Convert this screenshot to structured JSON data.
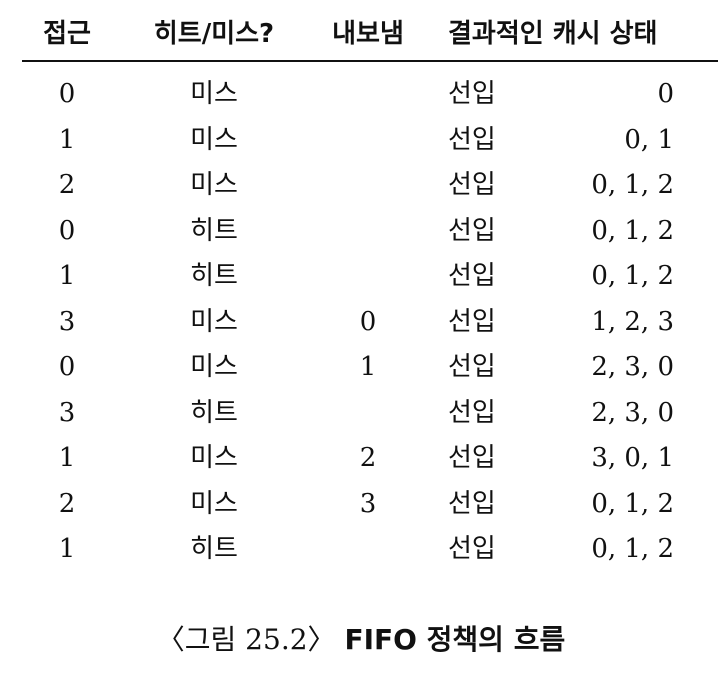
{
  "table": {
    "headers": [
      "접근",
      "히트/미스?",
      "내보냄",
      "결과적인 캐시 상태"
    ],
    "rows": [
      {
        "access": "0",
        "result": "미스",
        "evicted": "",
        "insert": "선입",
        "state": "0"
      },
      {
        "access": "1",
        "result": "미스",
        "evicted": "",
        "insert": "선입",
        "state": "0, 1"
      },
      {
        "access": "2",
        "result": "미스",
        "evicted": "",
        "insert": "선입",
        "state": "0, 1, 2"
      },
      {
        "access": "0",
        "result": "히트",
        "evicted": "",
        "insert": "선입",
        "state": "0, 1, 2"
      },
      {
        "access": "1",
        "result": "히트",
        "evicted": "",
        "insert": "선입",
        "state": "0, 1, 2"
      },
      {
        "access": "3",
        "result": "미스",
        "evicted": "0",
        "insert": "선입",
        "state": "1, 2, 3"
      },
      {
        "access": "0",
        "result": "미스",
        "evicted": "1",
        "insert": "선입",
        "state": "2, 3, 0"
      },
      {
        "access": "3",
        "result": "히트",
        "evicted": "",
        "insert": "선입",
        "state": "2, 3, 0"
      },
      {
        "access": "1",
        "result": "미스",
        "evicted": "2",
        "insert": "선입",
        "state": "3, 0, 1"
      },
      {
        "access": "2",
        "result": "미스",
        "evicted": "3",
        "insert": "선입",
        "state": "0, 1, 2"
      },
      {
        "access": "1",
        "result": "히트",
        "evicted": "",
        "insert": "선입",
        "state": "0, 1, 2"
      }
    ]
  },
  "caption": {
    "prefix": "〈그림 25.2〉",
    "title": "FIFO 정책의 흐름"
  }
}
